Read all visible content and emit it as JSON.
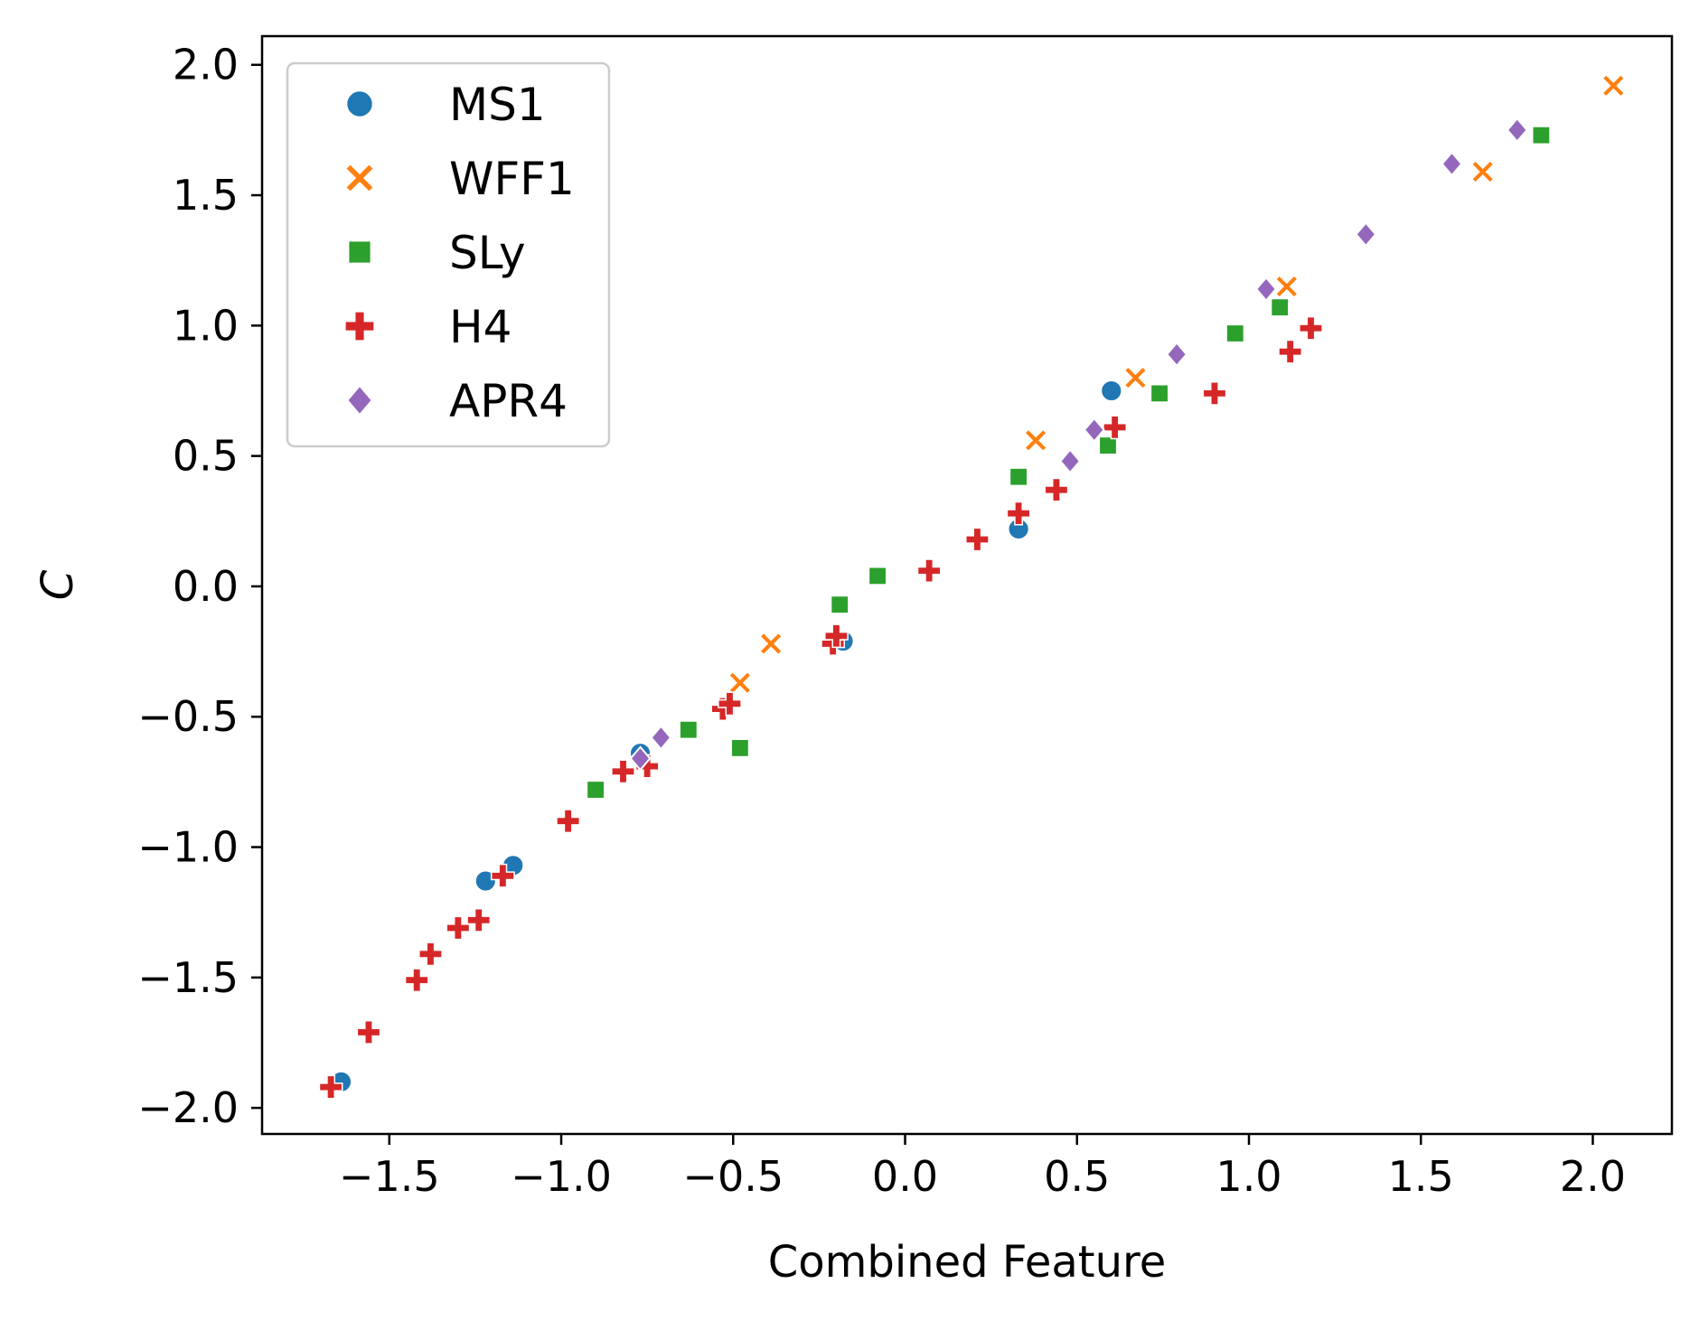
{
  "chart_data": {
    "type": "scatter",
    "title": "",
    "xlabel": "Combined Feature",
    "ylabel": "C",
    "xlim": [
      -1.87,
      2.23
    ],
    "ylim": [
      -2.1,
      2.11
    ],
    "xticks": [
      "−1.5",
      "−1.0",
      "−0.5",
      "0.0",
      "0.5",
      "1.0",
      "1.5",
      "2.0"
    ],
    "xtick_values": [
      -1.5,
      -1.0,
      -0.5,
      0.0,
      0.5,
      1.0,
      1.5,
      2.0
    ],
    "yticks": [
      "−2.0",
      "−1.5",
      "−1.0",
      "−0.5",
      "0.0",
      "0.5",
      "1.0",
      "1.5",
      "2.0"
    ],
    "ytick_values": [
      -2.0,
      -1.5,
      -1.0,
      -0.5,
      0.0,
      0.5,
      1.0,
      1.5,
      2.0
    ],
    "grid": false,
    "legend_position": "top-left",
    "series": [
      {
        "name": "MS1",
        "marker": "circle",
        "color": "#1f77b4",
        "points": [
          [
            -1.64,
            -1.9
          ],
          [
            -1.22,
            -1.13
          ],
          [
            -1.14,
            -1.07
          ],
          [
            -0.77,
            -0.64
          ],
          [
            -0.18,
            -0.21
          ],
          [
            0.33,
            0.22
          ],
          [
            0.6,
            0.75
          ]
        ]
      },
      {
        "name": "WFF1",
        "marker": "x",
        "color": "#ff7f0e",
        "points": [
          [
            -0.48,
            -0.37
          ],
          [
            -0.39,
            -0.22
          ],
          [
            0.38,
            0.56
          ],
          [
            0.67,
            0.8
          ],
          [
            1.11,
            1.15
          ],
          [
            1.68,
            1.59
          ],
          [
            2.06,
            1.92
          ]
        ]
      },
      {
        "name": "SLy",
        "marker": "square",
        "color": "#2ca02c",
        "points": [
          [
            -0.9,
            -0.78
          ],
          [
            -0.63,
            -0.55
          ],
          [
            -0.48,
            -0.62
          ],
          [
            -0.19,
            -0.07
          ],
          [
            -0.08,
            0.04
          ],
          [
            0.33,
            0.42
          ],
          [
            0.59,
            0.54
          ],
          [
            0.74,
            0.74
          ],
          [
            0.96,
            0.97
          ],
          [
            1.09,
            1.07
          ],
          [
            1.85,
            1.73
          ]
        ]
      },
      {
        "name": "H4",
        "marker": "plus",
        "color": "#d62728",
        "points": [
          [
            -1.67,
            -1.92
          ],
          [
            -1.56,
            -1.71
          ],
          [
            -1.42,
            -1.51
          ],
          [
            -1.38,
            -1.41
          ],
          [
            -1.3,
            -1.31
          ],
          [
            -1.24,
            -1.28
          ],
          [
            -1.17,
            -1.11
          ],
          [
            -0.98,
            -0.9
          ],
          [
            -0.82,
            -0.71
          ],
          [
            -0.75,
            -0.69
          ],
          [
            -0.53,
            -0.47
          ],
          [
            -0.51,
            -0.45
          ],
          [
            -0.21,
            -0.22
          ],
          [
            -0.2,
            -0.19
          ],
          [
            0.07,
            0.06
          ],
          [
            0.21,
            0.18
          ],
          [
            0.33,
            0.28
          ],
          [
            0.44,
            0.37
          ],
          [
            0.61,
            0.61
          ],
          [
            0.9,
            0.74
          ],
          [
            1.12,
            0.9
          ],
          [
            1.18,
            0.99
          ]
        ]
      },
      {
        "name": "APR4",
        "marker": "diamond",
        "color": "#9467bd",
        "points": [
          [
            -0.77,
            -0.66
          ],
          [
            -0.71,
            -0.58
          ],
          [
            0.48,
            0.48
          ],
          [
            0.55,
            0.6
          ],
          [
            0.79,
            0.89
          ],
          [
            1.05,
            1.14
          ],
          [
            1.34,
            1.35
          ],
          [
            1.59,
            1.62
          ],
          [
            1.78,
            1.75
          ]
        ]
      }
    ]
  }
}
